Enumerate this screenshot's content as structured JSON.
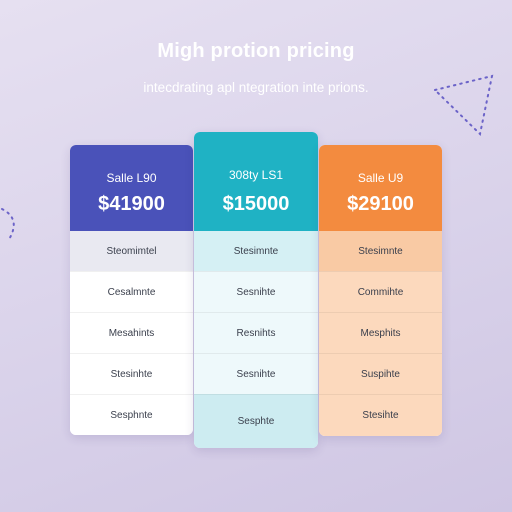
{
  "header": {
    "title": "Migh protion pricing",
    "subtitle": "intecdrating apl ntegration inte prions."
  },
  "plans": [
    {
      "name": "Salle L90",
      "price": "$41900",
      "color": "#4a52b9",
      "features": [
        "Steomimtel",
        "Cesalmnte",
        "Mesahints",
        "Stesinhte",
        "Sesphnte"
      ]
    },
    {
      "name": "308ty LS1",
      "price": "$15000",
      "color": "#1fb2c4",
      "features": [
        "Stesimnte",
        "Sesnihte",
        "Resnihts",
        "Sesnihte",
        "Sesphte"
      ]
    },
    {
      "name": "Salle U9",
      "price": "$29100",
      "color": "#f38b3f",
      "features": [
        "Stesimnte",
        "Commihte",
        "Mesphits",
        "Suspihte",
        "Stesihte"
      ]
    }
  ],
  "colors": {
    "background": "#d9d2ea",
    "decoration": "#6b63c8"
  },
  "icons": [
    "dotted-triangle-decoration",
    "dotted-arc-decoration"
  ]
}
